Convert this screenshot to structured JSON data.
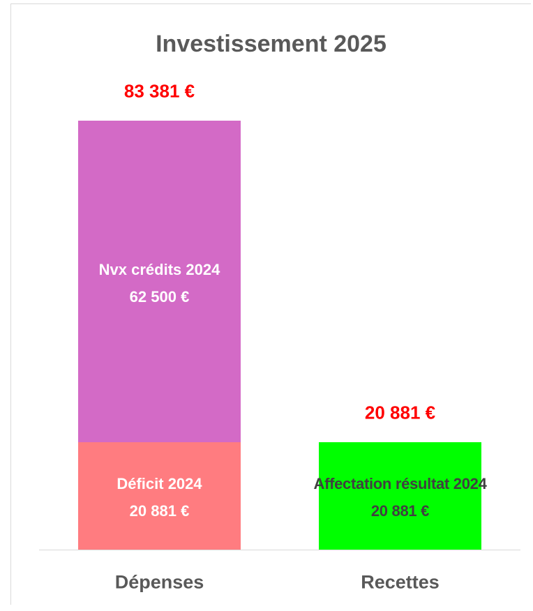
{
  "chart_data": {
    "type": "bar",
    "stacked": true,
    "title": "Investissement 2025",
    "categories": [
      "Dépenses",
      "Recettes"
    ],
    "series": [
      {
        "name": "Déficit 2024",
        "color": "#ff7c80",
        "label_color": "#ffffff",
        "values": [
          20881,
          null
        ],
        "value_labels": [
          "20 881 €",
          null
        ]
      },
      {
        "name": "Nvx crédits 2024",
        "color": "#d36ac6",
        "label_color": "#ffffff",
        "values": [
          62500,
          null
        ],
        "value_labels": [
          "62 500 €",
          null
        ]
      },
      {
        "name": "Affectation résultat 2024",
        "color": "#00ff00",
        "label_color": "#404040",
        "values": [
          null,
          20881
        ],
        "value_labels": [
          null,
          "20 881 €"
        ]
      }
    ],
    "totals": [
      83381,
      20881
    ],
    "total_labels": [
      "83 381 €",
      "20 881 €"
    ],
    "total_color": "#ff0000",
    "ylim": [
      0,
      100000
    ]
  }
}
